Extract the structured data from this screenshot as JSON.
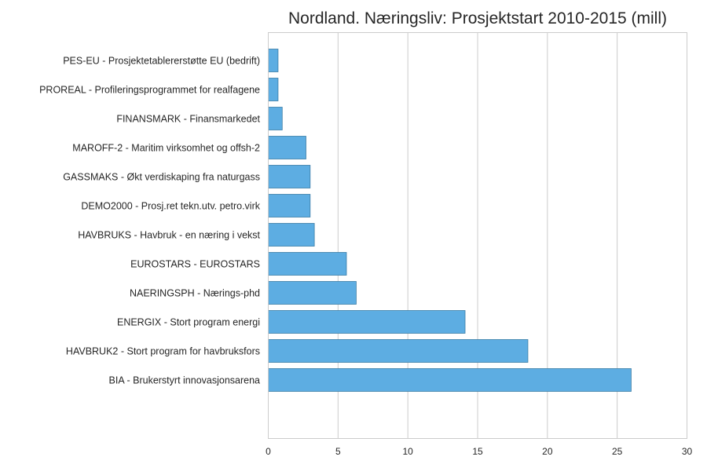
{
  "chart_data": {
    "type": "bar",
    "orientation": "horizontal",
    "title": "Nordland. Næringsliv: Prosjektstart 2010-2015 (mill)",
    "xlabel": "",
    "ylabel": "",
    "xlim": [
      0,
      30
    ],
    "xticks": [
      0,
      5,
      10,
      15,
      20,
      25,
      30
    ],
    "grid": "vertical",
    "bar_color": "#5DADE2",
    "bar_edge_color": "#3A7CA5",
    "categories": [
      "PES-EU - Prosjektetablererstøtte EU (bedrift)",
      "PROREAL - Profileringsprogrammet for realfagene",
      "FINANSMARK - Finansmarkedet",
      "MAROFF-2 - Maritim virksomhet og offsh-2",
      "GASSMAKS - Økt verdiskaping fra naturgass",
      "DEMO2000 - Prosj.ret tekn.utv. petro.virk",
      "HAVBRUKS - Havbruk - en næring i vekst",
      "EUROSTARS - EUROSTARS",
      "NAERINGSPH - Nærings-phd",
      "ENERGIX - Stort program energi",
      "HAVBRUK2 - Stort program for havbruksfors",
      "BIA - Brukerstyrt innovasjonsarena"
    ],
    "values": [
      0.7,
      0.7,
      1.0,
      2.7,
      3.0,
      3.0,
      3.3,
      5.6,
      6.3,
      14.1,
      18.6,
      26.0
    ]
  }
}
